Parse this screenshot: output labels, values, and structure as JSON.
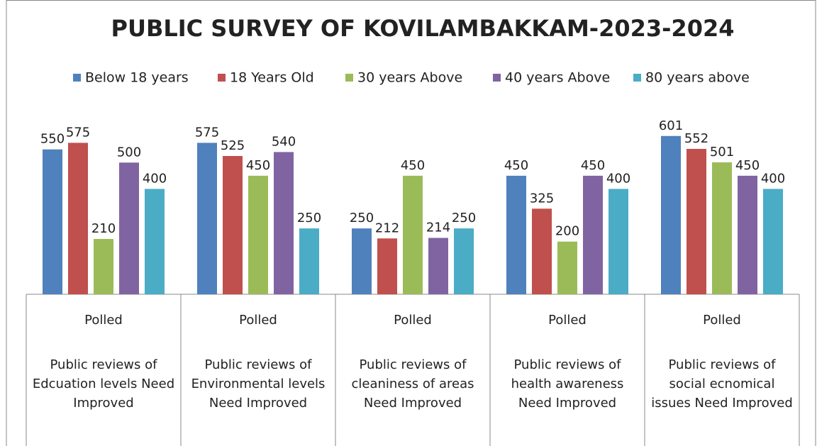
{
  "chart_data": {
    "type": "bar",
    "title": "PUBLIC SURVEY OF KOVILAMBAKKAM-2023-2024",
    "subcategories": [
      "Polled",
      "Polled",
      "Polled",
      "Polled",
      "Polled"
    ],
    "categories": [
      "Public reviews of Edcuation levels Need Improved",
      "Public reviews of Environmental levels Need Improved",
      "Public reviews of cleaniness of areas Need Improved",
      "Public reviews of health awareness Need Improved",
      "Public reviews of social ecnomical issues Need Improved"
    ],
    "series": [
      {
        "name": "Below 18 years",
        "color": "#4f81bd",
        "values": [
          550,
          575,
          250,
          450,
          601
        ]
      },
      {
        "name": "18 Years Old",
        "color": "#c0504d",
        "values": [
          575,
          525,
          212,
          325,
          552
        ]
      },
      {
        "name": "30 years Above",
        "color": "#9bbb59",
        "values": [
          210,
          450,
          450,
          200,
          501
        ]
      },
      {
        "name": "40 years Above",
        "color": "#8064a2",
        "values": [
          500,
          540,
          214,
          450,
          450
        ]
      },
      {
        "name": "80 years above",
        "color": "#4bacc6",
        "values": [
          400,
          250,
          250,
          400,
          400
        ]
      }
    ],
    "ylim": [
      0,
      700
    ],
    "legend": "top"
  }
}
